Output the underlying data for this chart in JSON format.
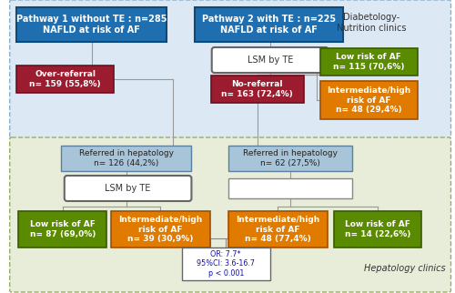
{
  "fig_width": 5.0,
  "fig_height": 3.22,
  "dpi": 100,
  "top_bg": "#dce9f5",
  "bottom_bg": "#e8edda",
  "top_bg_border": "#8ab0cc",
  "bottom_bg_border": "#9aac6a",
  "blue_box": "#1f6fb0",
  "dark_red_box": "#9b1c2e",
  "green_box": "#5a8a00",
  "orange_box": "#e07b00",
  "light_blue_box": "#a8c4d8",
  "white_box": "#ffffff",
  "pathway1_title": "Pathway 1 without TE : n=285\nNAFLD at risk of AF",
  "pathway2_title": "Pathway 2 with TE : n=225\nNAFLD at risk of AF",
  "lsm_te_top": "LSM by TE",
  "over_referral": "Over-referral\nn= 159 (55,8%)",
  "no_referral": "No-referral\nn= 163 (72,4%)",
  "low_risk_top": "Low risk of AF\nn= 115 (70,6%)",
  "int_high_top": "Intermediate/high\nrisk of AF\nn= 48 (29,4%)",
  "ref_hep1": "Referred in hepatology\nn= 126 (44,2%)",
  "ref_hep2": "Referred in hepatology\nn= 62 (27,5%)",
  "lsm_te_bottom": "LSM by TE",
  "low_risk_bot_left": "Low risk of AF\nn= 87 (69,0%)",
  "int_high_bot_left": "Intermediate/high\nrisk of AF\nn= 39 (30,9%)",
  "int_high_bot_right": "Intermediate/high\nrisk of AF\nn= 48 (77,4%)",
  "low_risk_bot_right": "Low risk of AF\nn= 14 (22,6%)",
  "or_text": "OR: 7.7*\n95%CI: 3.6-16.7\np < 0.001",
  "diabetology_label": "Diabetology-\nNutrition clinics",
  "hepatology_label": "Hepatology clinics",
  "line_color": "#999999"
}
